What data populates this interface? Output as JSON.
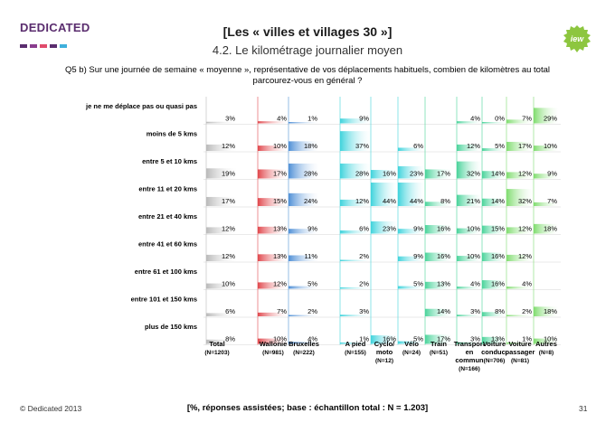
{
  "header": {
    "logo": "DEDICATED",
    "title": "[Les « villes et villages 30 »]",
    "subtitle": "4.2. Le kilométrage journalier moyen",
    "badge": "iew"
  },
  "question": "Q5 b) Sur une journée de semaine « moyenne », représentative de vos déplacements habituels, combien de kilomètres au total parcourez-vous en général ?",
  "footer": {
    "copyright": "© Dedicated 2013",
    "base_note": "[%, réponses assistées; base : échantillon total : N = 1.203]",
    "page_number": "31"
  },
  "chart_data": {
    "type": "table",
    "title": "Le kilométrage journalier moyen",
    "rows": [
      "je ne me déplace pas ou quasi pas",
      "moins de 5 kms",
      "entre 5 et 10 kms",
      "entre 11 et 20 kms",
      "entre 21 et 40 kms",
      "entre 41 et 60 kms",
      "entre 61 et 100 kms",
      "entre 101 et 150 kms",
      "plus de 150 kms"
    ],
    "columns": [
      {
        "name": "Total",
        "base": "(N=1203)",
        "color": "#b9b9b9",
        "values": [
          3,
          12,
          19,
          17,
          12,
          12,
          10,
          6,
          8
        ]
      },
      {
        "name": "Wallonie",
        "base": "(N=981)",
        "color": "#e0474c",
        "values": [
          4,
          10,
          17,
          15,
          13,
          13,
          12,
          7,
          10
        ]
      },
      {
        "name": "Bruxelles",
        "base": "(N=222)",
        "color": "#4f8fd6",
        "values": [
          1,
          18,
          28,
          24,
          9,
          11,
          5,
          2,
          4
        ]
      },
      {
        "name": "A pied",
        "base": "(N=155)",
        "color": "#3fd3dc",
        "values": [
          9,
          37,
          28,
          12,
          6,
          2,
          2,
          3,
          1
        ]
      },
      {
        "name": "Cyclo/ moto",
        "base": "(N=12)",
        "color": "#3fd3dc",
        "values": [
          null,
          null,
          16,
          44,
          23,
          null,
          null,
          null,
          16
        ]
      },
      {
        "name": "Vélo",
        "base": "(N=24)",
        "color": "#3fd3dc",
        "values": [
          null,
          6,
          23,
          44,
          9,
          9,
          5,
          null,
          5
        ]
      },
      {
        "name": "Train",
        "base": "(N=51)",
        "color": "#49d39a",
        "values": [
          null,
          null,
          17,
          8,
          16,
          16,
          13,
          14,
          17
        ]
      },
      {
        "name": "Transport en commun",
        "base": "(N=166)",
        "color": "#49d39a",
        "values": [
          4,
          12,
          32,
          21,
          10,
          10,
          4,
          3,
          3
        ]
      },
      {
        "name": "Voiture conduc.",
        "base": "(N=706)",
        "color": "#49d39a",
        "values": [
          0,
          5,
          14,
          14,
          15,
          16,
          16,
          8,
          13
        ]
      },
      {
        "name": "Voiture passager",
        "base": "(N=81)",
        "color": "#7fdc6e",
        "values": [
          7,
          17,
          12,
          32,
          12,
          12,
          4,
          2,
          1
        ]
      },
      {
        "name": "Autres",
        "base": "(N=8)",
        "color": "#7fdc6e",
        "values": [
          29,
          10,
          9,
          7,
          18,
          null,
          null,
          18,
          10
        ]
      }
    ],
    "value_suffix": "%"
  }
}
